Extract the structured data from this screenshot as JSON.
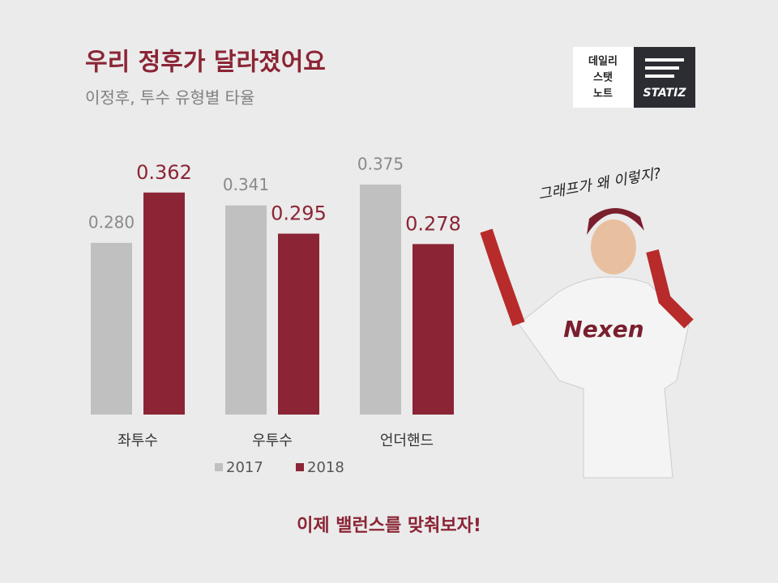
{
  "chart_data": {
    "type": "bar",
    "title": "우리 정후가 달라졌어요",
    "subtitle": "이정후, 투수 유형별 타율",
    "categories": [
      "좌투수",
      "우투수",
      "언더핸드"
    ],
    "series": [
      {
        "name": "2017",
        "color": "#c0c0c0",
        "values": [
          0.28,
          0.341,
          0.375
        ],
        "value_labels": [
          "0.280",
          "0.341",
          "0.375"
        ]
      },
      {
        "name": "2018",
        "color": "#8b2535",
        "values": [
          0.362,
          0.295,
          0.278
        ],
        "value_labels": [
          "0.362",
          "0.295",
          "0.278"
        ]
      }
    ],
    "ylim": [
      0,
      0.4
    ],
    "grid": false,
    "legend": "bottom",
    "annotation": "그래프가 왜 이렇지?",
    "footer": "이제 밸런스를 맞춰보자!"
  },
  "logo": {
    "lines": [
      "데일리",
      "스탯",
      "노트"
    ],
    "brand": "STATIZ"
  },
  "photo": {
    "jersey": "Nexen"
  }
}
